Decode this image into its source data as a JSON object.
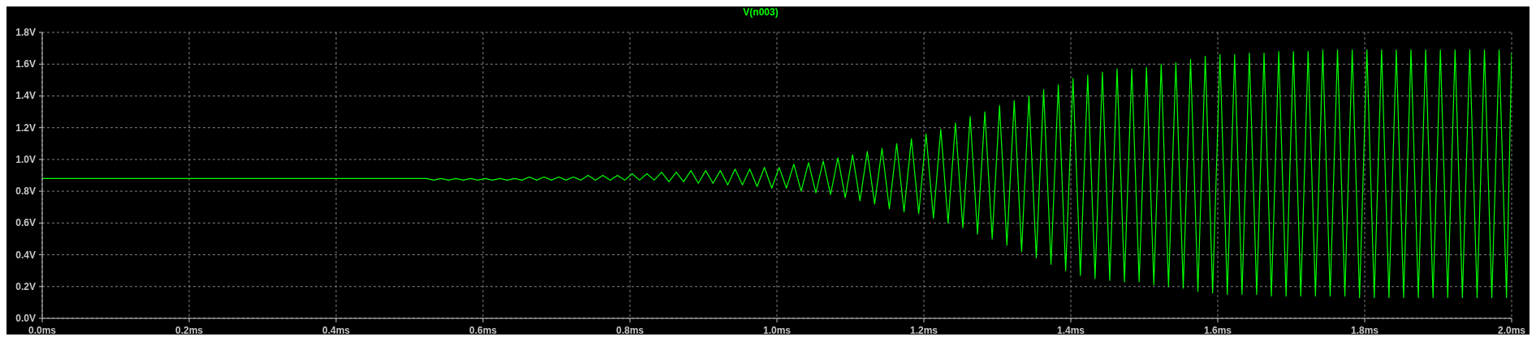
{
  "chart_data": {
    "type": "line",
    "legend": "top",
    "grid": true,
    "marker": "none",
    "line_style": "solid",
    "xlim": [
      0,
      2
    ],
    "xticks": [
      {
        "value": 0,
        "label": "0.0ms"
      },
      {
        "value": 0.2,
        "label": "0.2ms"
      },
      {
        "value": 0.4,
        "label": "0.4ms"
      },
      {
        "value": 0.6,
        "label": "0.6ms"
      },
      {
        "value": 0.8,
        "label": "0.8ms"
      },
      {
        "value": 1.0,
        "label": "1.0ms"
      },
      {
        "value": 1.2,
        "label": "1.2ms"
      },
      {
        "value": 1.4,
        "label": "1.4ms"
      },
      {
        "value": 1.6,
        "label": "1.6ms"
      },
      {
        "value": 1.8,
        "label": "1.8ms"
      },
      {
        "value": 2.0,
        "label": "2.0ms"
      }
    ],
    "ylim": [
      0,
      1.8
    ],
    "yticks": [
      {
        "value": 0,
        "label": "0.0V"
      },
      {
        "value": 0.2,
        "label": "0.2V"
      },
      {
        "value": 0.4,
        "label": "0.4V"
      },
      {
        "value": 0.6,
        "label": "0.6V"
      },
      {
        "value": 0.8,
        "label": "0.8V"
      },
      {
        "value": 1.0,
        "label": "1.0V"
      },
      {
        "value": 1.2,
        "label": "1.2V"
      },
      {
        "value": 1.4,
        "label": "1.4V"
      },
      {
        "value": 1.6,
        "label": "1.6V"
      },
      {
        "value": 1.8,
        "label": "1.8V"
      }
    ],
    "series": [
      {
        "name": "V(n003)",
        "color": "#00ff00",
        "x": [
          0,
          0.515,
          0.523,
          0.533,
          0.543,
          0.553,
          0.563,
          0.573,
          0.583,
          0.593,
          0.603,
          0.613,
          0.623,
          0.633,
          0.643,
          0.653,
          0.663,
          0.673,
          0.683,
          0.693,
          0.703,
          0.713,
          0.723,
          0.733,
          0.743,
          0.753,
          0.763,
          0.773,
          0.783,
          0.793,
          0.803,
          0.813,
          0.823,
          0.833,
          0.843,
          0.853,
          0.863,
          0.873,
          0.883,
          0.893,
          0.903,
          0.913,
          0.923,
          0.933,
          0.943,
          0.953,
          0.963,
          0.973,
          0.983,
          0.993,
          1.003,
          1.013,
          1.023,
          1.033,
          1.043,
          1.053,
          1.063,
          1.073,
          1.083,
          1.093,
          1.103,
          1.113,
          1.123,
          1.133,
          1.143,
          1.153,
          1.163,
          1.173,
          1.183,
          1.193,
          1.203,
          1.213,
          1.223,
          1.233,
          1.243,
          1.253,
          1.263,
          1.273,
          1.283,
          1.293,
          1.303,
          1.313,
          1.323,
          1.333,
          1.343,
          1.353,
          1.363,
          1.373,
          1.383,
          1.393,
          1.403,
          1.413,
          1.423,
          1.433,
          1.443,
          1.453,
          1.463,
          1.473,
          1.483,
          1.493,
          1.503,
          1.513,
          1.523,
          1.533,
          1.543,
          1.553,
          1.563,
          1.573,
          1.583,
          1.593,
          1.603,
          1.613,
          1.623,
          1.633,
          1.643,
          1.653,
          1.663,
          1.673,
          1.683,
          1.693,
          1.703,
          1.713,
          1.723,
          1.733,
          1.743,
          1.753,
          1.763,
          1.773,
          1.783,
          1.793,
          1.803,
          1.813,
          1.823,
          1.833,
          1.843,
          1.853,
          1.863,
          1.873,
          1.883,
          1.893,
          1.903,
          1.913,
          1.923,
          1.933,
          1.943,
          1.953,
          1.963,
          1.973,
          1.983,
          1.993,
          2.0
        ],
        "values": [
          0.88,
          0.88,
          0.88,
          0.87,
          0.88,
          0.87,
          0.88,
          0.87,
          0.88,
          0.87,
          0.88,
          0.87,
          0.88,
          0.87,
          0.88,
          0.87,
          0.89,
          0.87,
          0.89,
          0.87,
          0.89,
          0.87,
          0.89,
          0.87,
          0.9,
          0.87,
          0.9,
          0.87,
          0.9,
          0.87,
          0.91,
          0.87,
          0.91,
          0.87,
          0.92,
          0.86,
          0.92,
          0.86,
          0.93,
          0.85,
          0.93,
          0.85,
          0.93,
          0.84,
          0.94,
          0.84,
          0.94,
          0.83,
          0.95,
          0.82,
          0.95,
          0.82,
          0.97,
          0.8,
          0.98,
          0.79,
          0.99,
          0.78,
          1.01,
          0.76,
          1.03,
          0.74,
          1.05,
          0.72,
          1.07,
          0.69,
          1.1,
          0.67,
          1.13,
          0.66,
          1.16,
          0.63,
          1.19,
          0.6,
          1.23,
          0.57,
          1.27,
          0.53,
          1.3,
          0.5,
          1.34,
          0.46,
          1.37,
          0.42,
          1.4,
          0.38,
          1.44,
          0.34,
          1.47,
          0.3,
          1.51,
          0.27,
          1.53,
          0.25,
          1.55,
          0.24,
          1.57,
          0.23,
          1.57,
          0.23,
          1.58,
          0.21,
          1.6,
          0.2,
          1.61,
          0.19,
          1.63,
          0.17,
          1.65,
          0.16,
          1.66,
          0.15,
          1.66,
          0.15,
          1.67,
          0.15,
          1.67,
          0.14,
          1.68,
          0.14,
          1.68,
          0.14,
          1.68,
          0.14,
          1.69,
          0.14,
          1.69,
          0.14,
          1.69,
          0.13,
          1.69,
          0.13,
          1.69,
          0.13,
          1.69,
          0.13,
          1.69,
          0.13,
          1.69,
          0.13,
          1.69,
          0.13,
          1.69,
          0.13,
          1.69,
          0.13,
          1.69,
          0.13,
          1.69,
          0.13,
          1.67
        ]
      }
    ]
  }
}
